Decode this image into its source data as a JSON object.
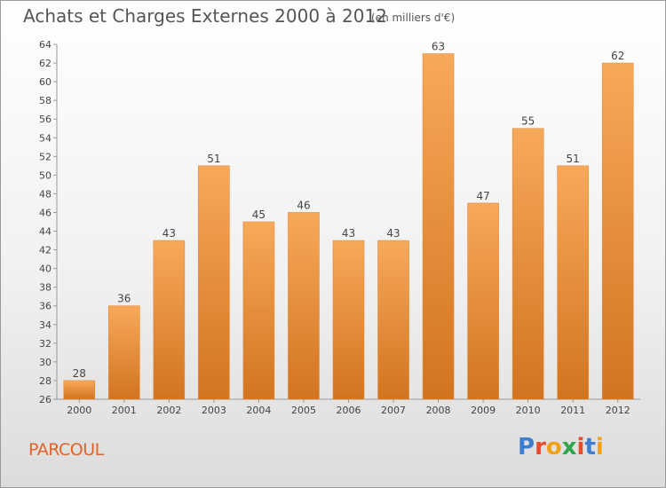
{
  "header": {
    "title": "Achats et Charges Externes 2000 à 2012",
    "subtitle": "(en milliers d'€)"
  },
  "footer": {
    "commune": "PARCOUL",
    "logo_text": "Proxiti"
  },
  "colors": {
    "bar_light": "#f7a95a",
    "bar_dark": "#d2741f",
    "commune": "#e0642a",
    "logo": [
      "#3c7fd0",
      "#e64b2a",
      "#f2a21a",
      "#2aa84a",
      "#e64b2a",
      "#3c7fd0",
      "#f2a21a"
    ]
  },
  "chart_data": {
    "type": "bar",
    "categories": [
      "2000",
      "2001",
      "2002",
      "2003",
      "2004",
      "2005",
      "2006",
      "2007",
      "2008",
      "2009",
      "2010",
      "2011",
      "2012"
    ],
    "values": [
      28,
      36,
      43,
      51,
      45,
      46,
      43,
      43,
      63,
      47,
      55,
      51,
      62
    ],
    "title": "Achats et Charges Externes 2000 à 2012",
    "subtitle": "(en milliers d'€)",
    "xlabel": "",
    "ylabel": "",
    "ylim": [
      26,
      64
    ],
    "yticks": [
      26,
      28,
      30,
      32,
      34,
      36,
      38,
      40,
      42,
      44,
      46,
      48,
      50,
      52,
      54,
      56,
      58,
      60,
      62,
      64
    ],
    "grid": false,
    "data_labels": true
  }
}
